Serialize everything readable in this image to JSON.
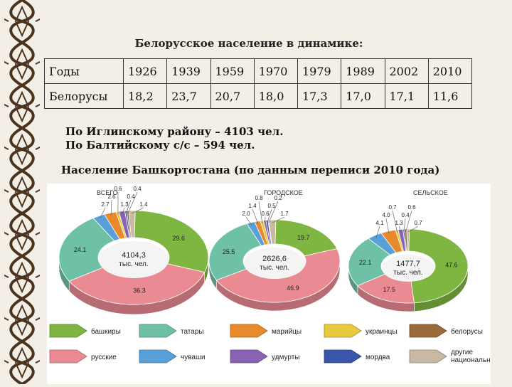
{
  "title": "Белорусское население в динамике:",
  "table": {
    "row1_label": "Годы",
    "years": [
      "1926",
      "1939",
      "1959",
      "1970",
      "1979",
      "1989",
      "2002",
      "2010"
    ],
    "row2_label": "Белорусы",
    "values": [
      "18,2",
      "23,7",
      "20,7",
      "18,0",
      "17,3",
      "17,0",
      "17,1",
      "11,6"
    ]
  },
  "notes": {
    "line1": "По Иглинскому району – 4103 чел.",
    "line2": "По Балтийскому с/с – 594 чел."
  },
  "census_title": "Население Башкортостана (по данным переписи 2010 года)",
  "colors": {
    "bashkiry": "#7fb642",
    "tatary": "#6fc1a6",
    "mariytsy": "#e8892c",
    "ukraintsy": "#e8c93b",
    "belorusy": "#9a6a3a",
    "russkie": "#ea8a93",
    "chuvashi": "#5aa0d8",
    "udmurty": "#8a62b3",
    "mordva": "#3a56a8",
    "other": "#c9b8a3"
  },
  "chart_data": [
    {
      "type": "pie",
      "title": "ВСЕГО",
      "center_value": "4104,3",
      "center_unit": "тыс. чел.",
      "slices": [
        {
          "key": "bashkiry",
          "label": "29.6",
          "value": 29.6
        },
        {
          "key": "russkie",
          "label": "36.3",
          "value": 36.3
        },
        {
          "key": "tatary",
          "label": "24.1",
          "value": 24.1
        },
        {
          "key": "chuvashi",
          "label": "2.7",
          "value": 2.7
        },
        {
          "key": "mariytsy",
          "label": "2.6",
          "value": 2.6
        },
        {
          "key": "ukraintsy",
          "label": "0.6",
          "value": 0.6
        },
        {
          "key": "udmurty",
          "label": "1.3",
          "value": 1.3
        },
        {
          "key": "mordva",
          "label": "0.4",
          "value": 0.4
        },
        {
          "key": "belorusy",
          "label": "0.4",
          "value": 0.4
        },
        {
          "key": "other",
          "label": "1.4",
          "value": 1.4
        }
      ]
    },
    {
      "type": "pie",
      "title": "ГОРОДСКОЕ",
      "center_value": "2626,6",
      "center_unit": "тыс. чел.",
      "slices": [
        {
          "key": "bashkiry",
          "label": "19.7",
          "value": 19.7
        },
        {
          "key": "russkie",
          "label": "46.9",
          "value": 46.9
        },
        {
          "key": "tatary",
          "label": "25.5",
          "value": 25.5
        },
        {
          "key": "chuvashi",
          "label": "2.0",
          "value": 2.0
        },
        {
          "key": "mariytsy",
          "label": "1.4",
          "value": 1.4
        },
        {
          "key": "ukraintsy",
          "label": "0.8",
          "value": 0.8
        },
        {
          "key": "udmurty",
          "label": "0.6",
          "value": 0.6
        },
        {
          "key": "mordva",
          "label": "0.5",
          "value": 0.5
        },
        {
          "key": "belorusy",
          "label": "0.2",
          "value": 0.2
        },
        {
          "key": "other",
          "label": "1.7",
          "value": 1.7
        }
      ]
    },
    {
      "type": "pie",
      "title": "СЕЛЬСКОЕ",
      "center_value": "1477,7",
      "center_unit": "тыс. чел.",
      "slices": [
        {
          "key": "bashkiry",
          "label": "47.6",
          "value": 47.6
        },
        {
          "key": "russkie",
          "label": "17.5",
          "value": 17.5
        },
        {
          "key": "tatary",
          "label": "22.1",
          "value": 22.1
        },
        {
          "key": "chuvashi",
          "label": "4.1",
          "value": 4.1
        },
        {
          "key": "mariytsy",
          "label": "4.0",
          "value": 4.0
        },
        {
          "key": "ukraintsy",
          "label": "0.7",
          "value": 0.7
        },
        {
          "key": "udmurty",
          "label": "1.3",
          "value": 1.3
        },
        {
          "key": "mordva",
          "label": "0.4",
          "value": 0.4
        },
        {
          "key": "belorusy",
          "label": "0.6",
          "value": 0.6
        },
        {
          "key": "other",
          "label": "0.7",
          "value": 0.7
        }
      ]
    }
  ],
  "legend": [
    {
      "key": "bashkiry",
      "label": "башкиры"
    },
    {
      "key": "tatary",
      "label": "татары"
    },
    {
      "key": "mariytsy",
      "label": "марийцы"
    },
    {
      "key": "ukraintsy",
      "label": "украинцы"
    },
    {
      "key": "belorusy",
      "label": "белорусы"
    },
    {
      "key": "russkie",
      "label": "русские"
    },
    {
      "key": "chuvashi",
      "label": "чуваши"
    },
    {
      "key": "udmurty",
      "label": "удмурты"
    },
    {
      "key": "mordva",
      "label": "мордва"
    },
    {
      "key": "other",
      "label": "другие национальности"
    }
  ]
}
